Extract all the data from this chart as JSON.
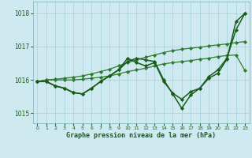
{
  "title": "Graphe pression niveau de la mer (hPa)",
  "background_color": "#ceeaf0",
  "grid_color": "#aad4dc",
  "line_color_dark": "#1a5c1a",
  "line_color_mid": "#2e7d2e",
  "xlim": [
    -0.5,
    23.5
  ],
  "ylim": [
    1014.7,
    1018.35
  ],
  "yticks": [
    1015,
    1016,
    1017,
    1018
  ],
  "xticks": [
    0,
    1,
    2,
    3,
    4,
    5,
    6,
    7,
    8,
    9,
    10,
    11,
    12,
    13,
    14,
    15,
    16,
    17,
    18,
    19,
    20,
    21,
    22,
    23
  ],
  "series": [
    {
      "x": [
        0,
        1,
        2,
        3,
        4,
        5,
        6,
        7,
        8,
        9,
        10,
        11,
        12,
        13,
        14,
        15,
        16,
        17,
        18,
        19,
        20,
        21,
        22,
        23
      ],
      "y": [
        1015.95,
        1016.0,
        1016.0,
        1016.0,
        1016.0,
        1016.02,
        1016.05,
        1016.08,
        1016.12,
        1016.18,
        1016.25,
        1016.3,
        1016.35,
        1016.42,
        1016.48,
        1016.52,
        1016.55,
        1016.58,
        1016.62,
        1016.65,
        1016.7,
        1016.73,
        1016.75,
        1016.28
      ],
      "color": "#2e7d2e",
      "marker": "D",
      "markersize": 2.2,
      "linewidth": 0.9
    },
    {
      "x": [
        0,
        1,
        2,
        3,
        4,
        5,
        6,
        7,
        8,
        9,
        10,
        11,
        12,
        13,
        14,
        15,
        16,
        17,
        18,
        19,
        20,
        21,
        22,
        23
      ],
      "y": [
        1015.95,
        1016.0,
        1016.02,
        1016.05,
        1016.08,
        1016.12,
        1016.18,
        1016.25,
        1016.32,
        1016.42,
        1016.52,
        1016.6,
        1016.68,
        1016.75,
        1016.82,
        1016.88,
        1016.92,
        1016.95,
        1016.98,
        1017.02,
        1017.05,
        1017.08,
        1017.12,
        1017.15
      ],
      "color": "#2e7d2e",
      "marker": "D",
      "markersize": 2.2,
      "linewidth": 0.9
    },
    {
      "x": [
        0,
        1,
        2,
        3,
        4,
        5,
        6,
        7,
        8,
        9,
        10,
        11,
        12,
        13,
        14,
        15,
        16,
        17,
        18,
        19,
        20,
        21,
        22,
        23
      ],
      "y": [
        1015.95,
        1015.95,
        1015.82,
        1015.75,
        1015.62,
        1015.58,
        1015.75,
        1015.95,
        1016.12,
        1016.3,
        1016.65,
        1016.52,
        1016.42,
        1016.52,
        1015.95,
        1015.6,
        1015.42,
        1015.65,
        1015.75,
        1016.1,
        1016.3,
        1016.65,
        1017.5,
        1018.0
      ],
      "color": "#1a5c1a",
      "marker": "D",
      "markersize": 2.2,
      "linewidth": 1.1
    },
    {
      "x": [
        0,
        1,
        2,
        3,
        4,
        5,
        6,
        7,
        8,
        9,
        10,
        11,
        12,
        13,
        14,
        15,
        16,
        17,
        18,
        19,
        20,
        21,
        22,
        23
      ],
      "y": [
        1015.95,
        1015.95,
        1015.82,
        1015.75,
        1015.62,
        1015.58,
        1015.75,
        1015.95,
        1016.12,
        1016.3,
        1016.55,
        1016.65,
        1016.6,
        1016.55,
        1016.0,
        1015.58,
        1015.15,
        1015.55,
        1015.75,
        1016.05,
        1016.2,
        1016.62,
        1017.75,
        1018.0
      ],
      "color": "#1a5c1a",
      "marker": "D",
      "markersize": 2.2,
      "linewidth": 1.1
    }
  ]
}
